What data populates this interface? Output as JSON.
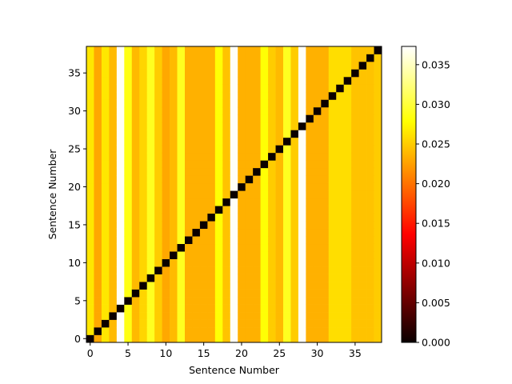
{
  "chart_data": {
    "type": "heatmap",
    "title": "",
    "xlabel": "Sentence Number",
    "ylabel": "Sentence Number",
    "n": 39,
    "xlim": [
      -0.5,
      38.5
    ],
    "ylim": [
      -0.5,
      38.5
    ],
    "x_ticks": [
      0,
      5,
      10,
      15,
      20,
      25,
      30,
      35
    ],
    "y_ticks": [
      0,
      5,
      10,
      15,
      20,
      25,
      30,
      35
    ],
    "diagonal_value": 0.0,
    "column_values": [
      0.0265,
      0.023,
      0.0265,
      0.024,
      0.037,
      0.0285,
      0.024,
      0.0255,
      0.029,
      0.025,
      0.023,
      0.024,
      0.029,
      0.0235,
      0.0235,
      0.0235,
      0.0235,
      0.028,
      0.0245,
      0.037,
      0.0235,
      0.0235,
      0.0235,
      0.028,
      0.025,
      0.024,
      0.029,
      0.025,
      0.037,
      0.0235,
      0.0235,
      0.0235,
      0.026,
      0.026,
      0.026,
      0.0245,
      0.0245,
      0.0245,
      0.025
    ],
    "colorbar": {
      "colormap": "hot",
      "vmin": 0.0,
      "vmax": 0.0373,
      "ticks": [
        "0.000",
        "0.005",
        "0.010",
        "0.015",
        "0.020",
        "0.025",
        "0.030",
        "0.035"
      ]
    }
  }
}
